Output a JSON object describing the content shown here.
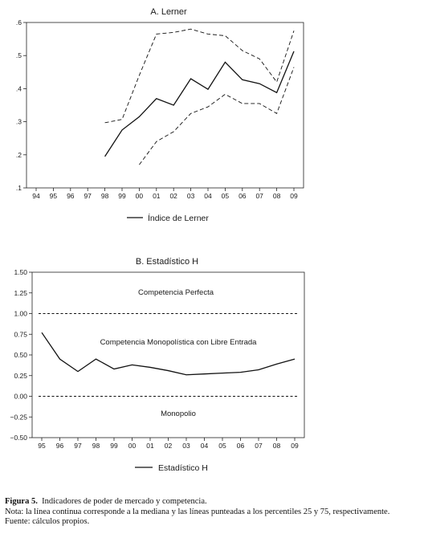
{
  "chart_data": [
    {
      "type": "line",
      "title": "A. Lerner",
      "categories": [
        "94",
        "95",
        "96",
        "97",
        "98",
        "99",
        "00",
        "01",
        "02",
        "03",
        "04",
        "05",
        "06",
        "07",
        "08",
        "09"
      ],
      "yticks": [
        ".1",
        ".2",
        ".3",
        ".4",
        ".5",
        ".6"
      ],
      "ylim": [
        0.1,
        0.6
      ],
      "grid": false,
      "legend_position": "bottom-center",
      "series": [
        {
          "name": "Índice de Lerner",
          "style": "solid",
          "values": [
            null,
            null,
            null,
            null,
            0.195,
            0.275,
            0.315,
            0.37,
            0.35,
            0.43,
            0.398,
            0.48,
            0.427,
            0.415,
            0.388,
            0.513
          ]
        },
        {
          "name": "",
          "style": "dashed",
          "values": [
            null,
            null,
            null,
            null,
            0.297,
            0.307,
            0.44,
            0.565,
            0.57,
            0.58,
            0.565,
            0.56,
            0.515,
            0.49,
            0.42,
            0.575
          ]
        },
        {
          "name": "",
          "style": "dashed",
          "values": [
            null,
            null,
            null,
            null,
            null,
            null,
            0.17,
            0.24,
            0.27,
            0.325,
            0.345,
            0.383,
            0.355,
            0.355,
            0.325,
            0.465
          ]
        }
      ]
    },
    {
      "type": "line",
      "title": "B. Estadístico H",
      "categories": [
        "95",
        "96",
        "97",
        "98",
        "99",
        "00",
        "01",
        "02",
        "03",
        "04",
        "05",
        "06",
        "07",
        "08",
        "09"
      ],
      "yticks": [
        "1.50",
        "1.25",
        "1.00",
        "0.75",
        "0.50",
        "0.25",
        "0.00",
        "−0.25",
        "−0.50"
      ],
      "ylim": [
        -0.5,
        1.5
      ],
      "grid": false,
      "legend_position": "bottom-center",
      "reference_lines": [
        1.0,
        0.0
      ],
      "annotations": [
        "Competencia Perfecta",
        "Competencia Monopolística con Libre Entrada",
        "Monopolio"
      ],
      "series": [
        {
          "name": "Estadístico H",
          "style": "solid",
          "values": [
            0.77,
            0.45,
            0.3,
            0.45,
            0.33,
            0.38,
            0.35,
            0.31,
            0.26,
            0.27,
            0.28,
            0.29,
            0.32,
            0.39,
            0.45
          ]
        }
      ]
    }
  ],
  "caption": {
    "label": "Figura 5.",
    "title": "Indicadores de poder de mercado y competencia.",
    "note": "Nota: la línea continua corresponde a la mediana y las líneas punteadas a los percentiles 25 y 75, respectivamente.",
    "source": "Fuente: cálculos propios."
  }
}
